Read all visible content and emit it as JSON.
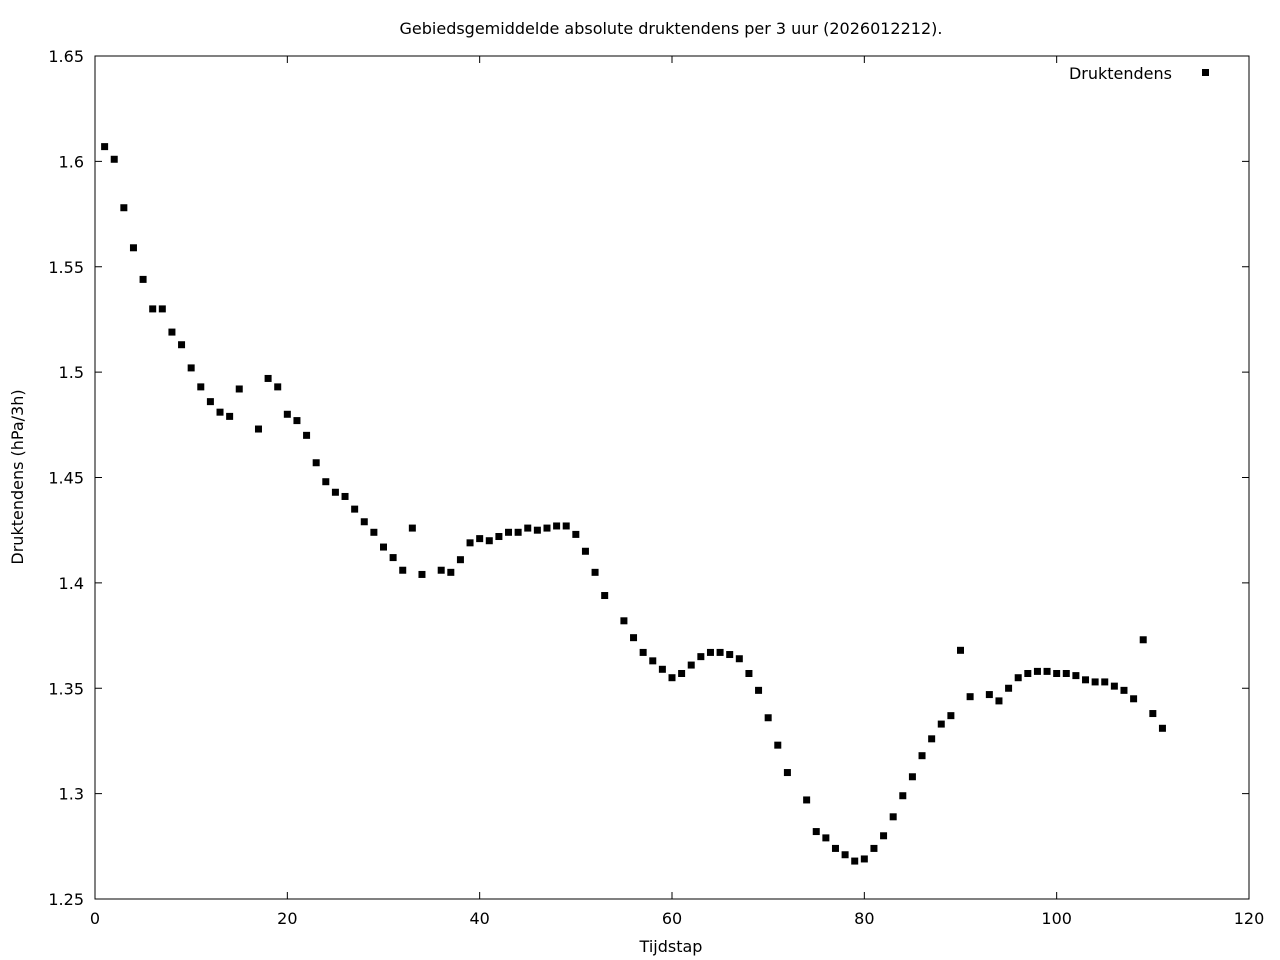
{
  "chart_data": {
    "type": "scatter",
    "title": "Gebiedsgemiddelde absolute druktendens per 3 uur (2026012212).",
    "xlabel": "Tijdstap",
    "ylabel": "Druktendens (hPa/3h)",
    "xlim": [
      0,
      120
    ],
    "ylim": [
      1.25,
      1.65
    ],
    "xticks": [
      "0",
      "20",
      "40",
      "60",
      "80",
      "100",
      "120"
    ],
    "yticks": [
      "1.25",
      "1.3",
      "1.35",
      "1.4",
      "1.45",
      "1.5",
      "1.55",
      "1.6",
      "1.65"
    ],
    "grid": false,
    "legend": "top-right",
    "series": [
      {
        "name": "Druktendens",
        "color": "#000000",
        "marker": "square",
        "x": [
          1,
          2,
          3,
          4,
          5,
          6,
          7,
          8,
          9,
          10,
          11,
          12,
          13,
          14,
          15,
          17,
          18,
          19,
          20,
          21,
          22,
          23,
          24,
          25,
          26,
          27,
          28,
          29,
          30,
          31,
          32,
          33,
          34,
          36,
          37,
          38,
          39,
          40,
          41,
          42,
          43,
          44,
          45,
          46,
          47,
          48,
          49,
          50,
          51,
          52,
          53,
          55,
          56,
          57,
          58,
          59,
          60,
          61,
          62,
          63,
          64,
          65,
          66,
          67,
          68,
          69,
          70,
          71,
          72,
          74,
          75,
          76,
          77,
          78,
          79,
          80,
          81,
          82,
          83,
          84,
          85,
          86,
          87,
          88,
          89,
          90,
          91,
          93,
          94,
          95,
          96,
          97,
          98,
          99,
          100,
          101,
          102,
          103,
          104,
          105,
          106,
          107,
          108,
          109,
          110,
          111
        ],
        "y": [
          1.607,
          1.601,
          1.578,
          1.559,
          1.544,
          1.53,
          1.53,
          1.519,
          1.513,
          1.502,
          1.493,
          1.486,
          1.481,
          1.479,
          1.492,
          1.473,
          1.497,
          1.493,
          1.48,
          1.477,
          1.47,
          1.457,
          1.448,
          1.443,
          1.441,
          1.435,
          1.429,
          1.424,
          1.417,
          1.412,
          1.406,
          1.426,
          1.404,
          1.406,
          1.405,
          1.411,
          1.419,
          1.421,
          1.42,
          1.422,
          1.424,
          1.424,
          1.426,
          1.425,
          1.426,
          1.427,
          1.427,
          1.423,
          1.415,
          1.405,
          1.394,
          1.382,
          1.374,
          1.367,
          1.363,
          1.359,
          1.355,
          1.357,
          1.361,
          1.365,
          1.367,
          1.367,
          1.366,
          1.364,
          1.357,
          1.349,
          1.336,
          1.323,
          1.31,
          1.297,
          1.282,
          1.279,
          1.274,
          1.271,
          1.268,
          1.269,
          1.274,
          1.28,
          1.289,
          1.299,
          1.308,
          1.318,
          1.326,
          1.333,
          1.337,
          1.368,
          1.346,
          1.347,
          1.344,
          1.35,
          1.355,
          1.357,
          1.358,
          1.358,
          1.357,
          1.357,
          1.356,
          1.354,
          1.353,
          1.353,
          1.351,
          1.349,
          1.345,
          1.373,
          1.338,
          1.331
        ]
      }
    ]
  }
}
